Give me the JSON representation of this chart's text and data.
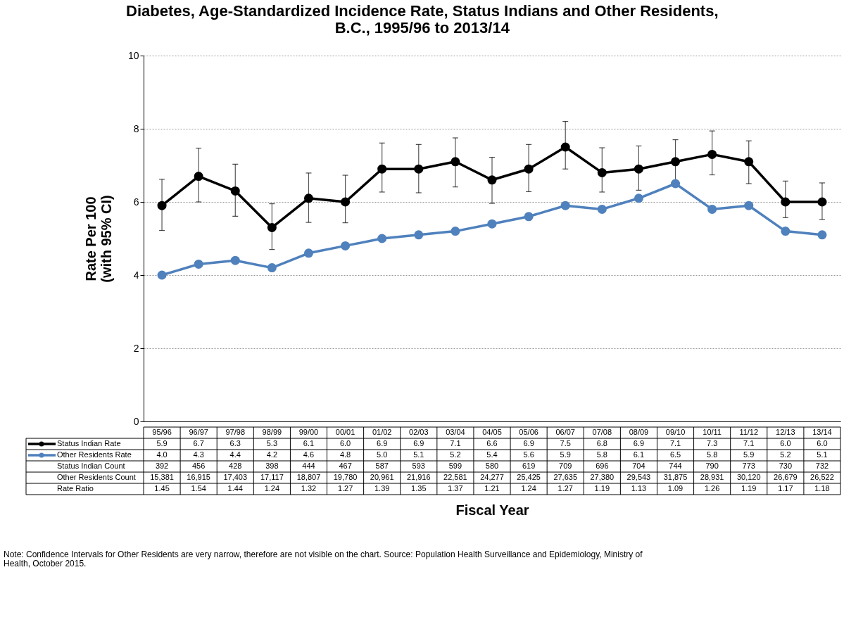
{
  "chart_data": {
    "type": "line",
    "title": "Diabetes, Age-Standardized Incidence Rate, Status Indians and Other Residents, B.C., 1995/96 to 2013/14",
    "xlabel": "Fiscal Year",
    "ylabel": "Rate Per 100 (with 95% CI)",
    "categories": [
      "95/96",
      "96/97",
      "97/98",
      "98/99",
      "99/00",
      "00/01",
      "01/02",
      "02/03",
      "03/04",
      "04/05",
      "05/06",
      "06/07",
      "07/08",
      "08/09",
      "09/10",
      "10/11",
      "11/12",
      "12/13",
      "13/14"
    ],
    "series": [
      {
        "name": "Status Indian Rate",
        "color": "#000000",
        "values": [
          5.9,
          6.7,
          6.3,
          5.3,
          6.1,
          6.0,
          6.9,
          6.9,
          7.1,
          6.6,
          6.9,
          7.5,
          6.8,
          6.9,
          7.1,
          7.3,
          7.1,
          6.0,
          6.0
        ],
        "errors": [
          [
            5.22,
            6.62
          ],
          [
            6.0,
            7.47
          ],
          [
            5.61,
            7.03
          ],
          [
            4.7,
            5.95
          ],
          [
            5.44,
            6.79
          ],
          [
            5.43,
            6.73
          ],
          [
            6.27,
            7.61
          ],
          [
            6.25,
            7.57
          ],
          [
            6.41,
            7.75
          ],
          [
            5.96,
            7.22
          ],
          [
            6.28,
            7.57
          ],
          [
            6.9,
            8.2
          ],
          [
            6.27,
            7.48
          ],
          [
            6.32,
            7.53
          ],
          [
            6.45,
            7.7
          ],
          [
            6.74,
            7.94
          ],
          [
            6.5,
            7.67
          ],
          [
            5.57,
            6.57
          ],
          [
            5.52,
            6.52
          ]
        ]
      },
      {
        "name": "Other Residents Rate",
        "color": "#4f81bd",
        "values": [
          4.0,
          4.3,
          4.4,
          4.2,
          4.6,
          4.8,
          5.0,
          5.1,
          5.2,
          5.4,
          5.6,
          5.9,
          5.8,
          6.1,
          6.5,
          5.8,
          5.9,
          5.2,
          5.1
        ]
      }
    ],
    "ylim": [
      0,
      10
    ],
    "yticks": [
      0,
      2,
      4,
      6,
      8,
      10
    ],
    "grid": "y",
    "marker": "circle",
    "line_style": "solid",
    "legend": "bottom left",
    "annotations": [
      "5.9",
      "6.7",
      "6.3",
      "5.3",
      "6.1",
      "6.0",
      "6.9",
      "6.9",
      "7.1",
      "6.6",
      "6.9",
      "7.5",
      "6.8",
      "6.9",
      "7.1",
      "7.3",
      "7.1",
      "6.0",
      "6.0",
      "4.0",
      "4.3",
      "4.4",
      "4.2",
      "4.6",
      "4.8",
      "5.0",
      "5.1",
      "5.2",
      "5.4",
      "5.6",
      "5.9",
      "5.8",
      "6.1",
      "6.5",
      "5.8",
      "5.9",
      "5.2",
      "5.1",
      "Status Indian Count",
      "392",
      "456",
      "428",
      "398",
      "444",
      "467",
      "587",
      "593",
      "599",
      "580",
      "619",
      "709",
      "696",
      "704",
      "744",
      "790",
      "773",
      "730",
      "732",
      "Other Residents Count",
      "15,381",
      "16,915",
      "17,403",
      "17,117",
      "18,807",
      "19,780",
      "20,961",
      "21,916",
      "22,581",
      "24,277",
      "25,425",
      "27,635",
      "27,380",
      "29,543",
      "31,875",
      "28,931",
      "30,120",
      "26,679",
      "26,522",
      "Rate Ratio",
      "1.45",
      "1.54",
      "1.44",
      "1.24",
      "1.32",
      "1.27",
      "1.39",
      "1.35",
      "1.37",
      "1.21",
      "1.24",
      "1.27",
      "1.19",
      "1.13",
      "1.09",
      "1.26",
      "1.19",
      "1.17",
      "1.18",
      "Note:  Confidence Intervals for Other Residents are very narrow, therefore are not visible on the chart.  Source:  Population Health Surveillance and Epidemiology, Ministry of Health, October 2015."
    ]
  }
}
